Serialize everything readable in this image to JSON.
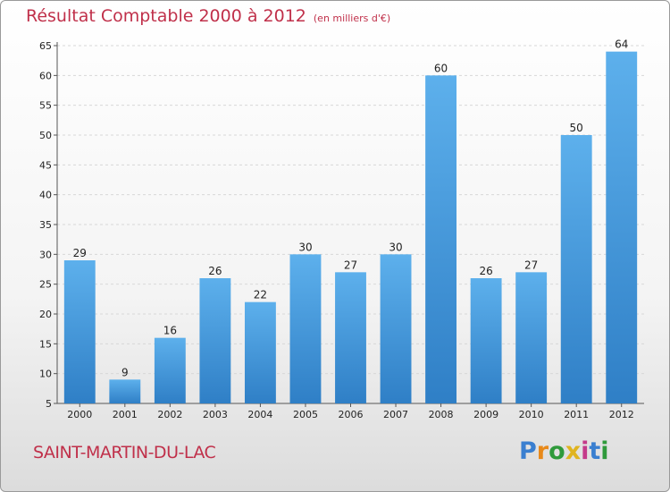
{
  "title": "Résultat Comptable 2000 à 2012",
  "subtitle": "(en milliers d'€)",
  "commune": "SAINT-MARTIN-DU-LAC",
  "logo": {
    "letters": [
      "P",
      "r",
      "o",
      "x",
      "i",
      "t",
      "i"
    ],
    "colors": [
      "#3a7fd0",
      "#e8891a",
      "#2f9a3b",
      "#e0b420",
      "#c43a8a",
      "#3a7fd0",
      "#2f9a3b"
    ]
  },
  "colors": {
    "bar": "#3d8fd6",
    "bar_top": "#5db0ec",
    "accent": "#c0304a"
  },
  "chart_data": {
    "type": "bar",
    "title": "Résultat Comptable 2000 à 2012",
    "subtitle": "(en milliers d'€)",
    "categories": [
      "2000",
      "2001",
      "2002",
      "2003",
      "2004",
      "2005",
      "2006",
      "2007",
      "2008",
      "2009",
      "2010",
      "2011",
      "2012"
    ],
    "values": [
      29,
      9,
      16,
      26,
      22,
      30,
      27,
      30,
      60,
      26,
      27,
      50,
      64
    ],
    "ylim": [
      5,
      65
    ],
    "yticks": [
      5,
      10,
      15,
      20,
      25,
      30,
      35,
      40,
      45,
      50,
      55,
      60,
      65
    ],
    "grid": true,
    "xlabel": "",
    "ylabel": ""
  }
}
